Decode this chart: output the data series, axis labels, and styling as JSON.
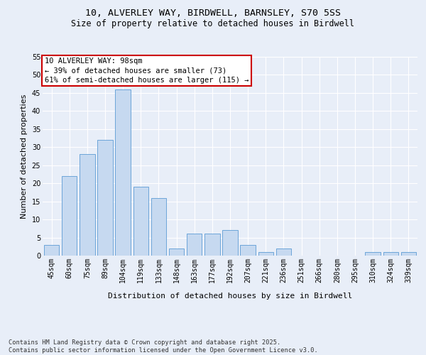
{
  "title_line1": "10, ALVERLEY WAY, BIRDWELL, BARNSLEY, S70 5SS",
  "title_line2": "Size of property relative to detached houses in Birdwell",
  "xlabel": "Distribution of detached houses by size in Birdwell",
  "ylabel": "Number of detached properties",
  "categories": [
    "45sqm",
    "60sqm",
    "75sqm",
    "89sqm",
    "104sqm",
    "119sqm",
    "133sqm",
    "148sqm",
    "163sqm",
    "177sqm",
    "192sqm",
    "207sqm",
    "221sqm",
    "236sqm",
    "251sqm",
    "266sqm",
    "280sqm",
    "295sqm",
    "310sqm",
    "324sqm",
    "339sqm"
  ],
  "values": [
    3,
    22,
    28,
    32,
    46,
    19,
    16,
    2,
    6,
    6,
    7,
    3,
    1,
    2,
    0,
    0,
    0,
    0,
    1,
    1,
    1
  ],
  "bar_color": "#c6d9f0",
  "bar_edge_color": "#5b9bd5",
  "background_color": "#e8eef8",
  "grid_color": "#ffffff",
  "annotation_text": "10 ALVERLEY WAY: 98sqm\n← 39% of detached houses are smaller (73)\n61% of semi-detached houses are larger (115) →",
  "annotation_box_color": "#ffffff",
  "annotation_box_edge_color": "#cc0000",
  "ylim": [
    0,
    55
  ],
  "yticks": [
    0,
    5,
    10,
    15,
    20,
    25,
    30,
    35,
    40,
    45,
    50,
    55
  ],
  "footnote": "Contains HM Land Registry data © Crown copyright and database right 2025.\nContains public sector information licensed under the Open Government Licence v3.0.",
  "title_fontsize": 9.5,
  "subtitle_fontsize": 8.5,
  "axis_label_fontsize": 8,
  "tick_fontsize": 7,
  "annotation_fontsize": 7.5,
  "footnote_fontsize": 6.2
}
